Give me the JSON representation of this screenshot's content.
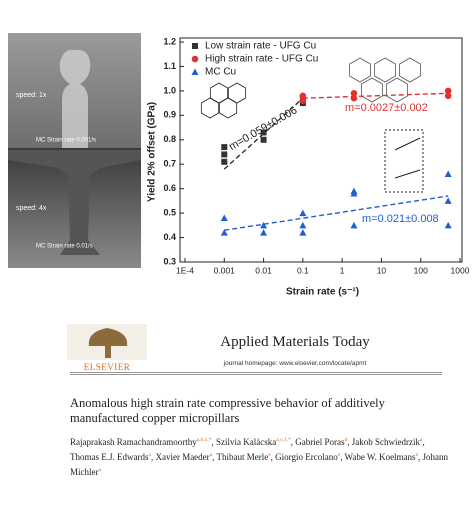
{
  "images": [
    {
      "caption": "speed: 1x",
      "label": "MC Strain rate 0.001/s"
    },
    {
      "caption": "speed: 4x",
      "label": "MC Strain rate 0.01/s"
    }
  ],
  "chart_data": {
    "type": "scatter",
    "x_label": "Strain rate (s⁻¹)",
    "y_label": "Yield 2% offset (GPa)",
    "x_log": true,
    "xlim": [
      0.0001,
      1000
    ],
    "xticks": [
      {
        "value": 0.0001,
        "label": "1E-4"
      },
      0.001,
      0.01,
      0.1,
      1,
      10,
      100,
      1000
    ],
    "ylim": [
      0.3,
      1.2
    ],
    "yticks": [
      0.3,
      0.4,
      0.5,
      0.6,
      0.7,
      0.8,
      0.9,
      {
        "value": 1,
        "label": "1.0"
      },
      1.1,
      1.2
    ],
    "legend": "top-left",
    "series": [
      {
        "name": "Low strain rate - UFG Cu",
        "color": "#333333",
        "marker": "square",
        "x": [
          0.001,
          0.001,
          0.001,
          0.01,
          0.01,
          0.1,
          0.1
        ],
        "values": [
          0.71,
          0.74,
          0.77,
          0.8,
          0.83,
          0.95,
          0.97
        ],
        "fit": {
          "x": [
            0.001,
            0.1
          ],
          "y": [
            0.68,
            0.97
          ]
        }
      },
      {
        "name": "High strain rate - UFG Cu",
        "color": "#e03232",
        "marker": "circle",
        "x": [
          0.1,
          0.1,
          2,
          2,
          500,
          500
        ],
        "values": [
          0.96,
          0.98,
          0.97,
          0.99,
          0.98,
          1.0
        ],
        "fit": {
          "x": [
            0.1,
            500
          ],
          "y": [
            0.97,
            0.99
          ]
        }
      },
      {
        "name": "MC Cu",
        "color": "#1f5fd0",
        "marker": "triangle",
        "x": [
          0.001,
          0.001,
          0.01,
          0.01,
          0.1,
          0.1,
          0.1,
          2,
          2,
          2,
          500,
          500,
          500
        ],
        "values": [
          0.48,
          0.42,
          0.42,
          0.45,
          0.5,
          0.45,
          0.42,
          0.59,
          0.58,
          0.45,
          0.66,
          0.55,
          0.45
        ],
        "fit": {
          "x": [
            0.001,
            500
          ],
          "y": [
            0.43,
            0.57
          ]
        }
      }
    ],
    "annotations": [
      "m=0.059±0.006",
      "m=0.0027±0.002",
      "m=0.021±0.008"
    ]
  },
  "journal": {
    "name": "Applied Materials Today",
    "homepage": "journal homepage: www.elsevier.com/locate/apmt",
    "publisher": "ELSEVIER"
  },
  "article": {
    "title": "Anomalous high strain rate compressive behavior of additively manufactured copper micropillars",
    "authors": [
      {
        "name": "Rajaprakash Ramachandramoorthy",
        "sup": "a,b,1,*"
      },
      {
        "name": "Szilvia Kalácska",
        "sup": "a,c,1,*"
      },
      {
        "name": "Gabriel Poras",
        "sup": "d"
      },
      {
        "name": "Jakob Schwiedrzik",
        "sup": "a"
      },
      {
        "name": "Thomas E.J. Edwards",
        "sup": "a"
      },
      {
        "name": "Xavier Maeder",
        "sup": "a"
      },
      {
        "name": "Thibaut Merle",
        "sup": "e"
      },
      {
        "name": "Giorgio Ercolano",
        "sup": "e"
      },
      {
        "name": "Wabe W. Koelmans",
        "sup": "e"
      },
      {
        "name": "Johann Michler",
        "sup": "a"
      }
    ]
  }
}
